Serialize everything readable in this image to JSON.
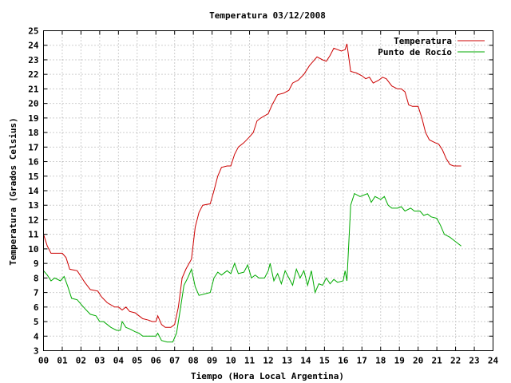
{
  "chart_data": {
    "type": "line",
    "title": "Temperatura 03/12/2008",
    "xlabel": "Tiempo (Hora Local Argentina)",
    "ylabel": "Temperatura (Grados Celsius)",
    "xlim": [
      0,
      24
    ],
    "ylim": [
      3,
      25
    ],
    "grid": true,
    "legend_position": "top-right",
    "x_ticks": [
      "00",
      "01",
      "02",
      "03",
      "04",
      "05",
      "06",
      "07",
      "08",
      "09",
      "10",
      "11",
      "12",
      "13",
      "14",
      "15",
      "16",
      "17",
      "18",
      "19",
      "20",
      "21",
      "22",
      "23",
      "24"
    ],
    "y_ticks": [
      "3",
      "4",
      "5",
      "6",
      "7",
      "8",
      "9",
      "10",
      "11",
      "12",
      "13",
      "14",
      "15",
      "16",
      "17",
      "18",
      "19",
      "20",
      "21",
      "22",
      "23",
      "24",
      "25"
    ],
    "series": [
      {
        "name": "Temperatura",
        "color": "#cc0000",
        "points": [
          [
            0,
            11
          ],
          [
            0.2,
            10.2
          ],
          [
            0.4,
            9.7
          ],
          [
            0.7,
            9.7
          ],
          [
            1.0,
            9.7
          ],
          [
            1.2,
            9.4
          ],
          [
            1.4,
            8.6
          ],
          [
            1.8,
            8.5
          ],
          [
            2.0,
            8.1
          ],
          [
            2.2,
            7.7
          ],
          [
            2.5,
            7.2
          ],
          [
            2.9,
            7.1
          ],
          [
            3.1,
            6.7
          ],
          [
            3.4,
            6.3
          ],
          [
            3.8,
            6.0
          ],
          [
            4.0,
            6.0
          ],
          [
            4.2,
            5.8
          ],
          [
            4.4,
            6.0
          ],
          [
            4.6,
            5.7
          ],
          [
            4.9,
            5.6
          ],
          [
            5.1,
            5.4
          ],
          [
            5.3,
            5.2
          ],
          [
            5.6,
            5.1
          ],
          [
            5.8,
            5.0
          ],
          [
            6.0,
            5.0
          ],
          [
            6.1,
            5.4
          ],
          [
            6.3,
            4.8
          ],
          [
            6.5,
            4.6
          ],
          [
            6.8,
            4.6
          ],
          [
            7.0,
            4.8
          ],
          [
            7.2,
            6.0
          ],
          [
            7.4,
            8.0
          ],
          [
            7.6,
            8.6
          ],
          [
            7.9,
            9.3
          ],
          [
            8.1,
            11.5
          ],
          [
            8.3,
            12.5
          ],
          [
            8.5,
            13.0
          ],
          [
            8.9,
            13.1
          ],
          [
            9.1,
            14.0
          ],
          [
            9.3,
            15.0
          ],
          [
            9.5,
            15.6
          ],
          [
            9.8,
            15.7
          ],
          [
            10.0,
            15.7
          ],
          [
            10.2,
            16.5
          ],
          [
            10.4,
            17.0
          ],
          [
            10.7,
            17.3
          ],
          [
            11.0,
            17.7
          ],
          [
            11.2,
            18.0
          ],
          [
            11.4,
            18.8
          ],
          [
            11.6,
            19.0
          ],
          [
            12.0,
            19.3
          ],
          [
            12.2,
            19.9
          ],
          [
            12.5,
            20.6
          ],
          [
            12.8,
            20.7
          ],
          [
            13.1,
            20.9
          ],
          [
            13.3,
            21.4
          ],
          [
            13.6,
            21.6
          ],
          [
            13.9,
            22.0
          ],
          [
            14.2,
            22.6
          ],
          [
            14.4,
            22.9
          ],
          [
            14.6,
            23.2
          ],
          [
            14.9,
            23.0
          ],
          [
            15.1,
            22.9
          ],
          [
            15.3,
            23.3
          ],
          [
            15.5,
            23.8
          ],
          [
            15.7,
            23.7
          ],
          [
            15.9,
            23.6
          ],
          [
            16.1,
            23.7
          ],
          [
            16.2,
            24.1
          ],
          [
            16.4,
            22.2
          ],
          [
            16.7,
            22.1
          ],
          [
            17.0,
            21.9
          ],
          [
            17.2,
            21.7
          ],
          [
            17.4,
            21.8
          ],
          [
            17.6,
            21.4
          ],
          [
            17.9,
            21.6
          ],
          [
            18.1,
            21.8
          ],
          [
            18.3,
            21.7
          ],
          [
            18.6,
            21.2
          ],
          [
            18.9,
            21.0
          ],
          [
            19.1,
            21.0
          ],
          [
            19.3,
            20.8
          ],
          [
            19.5,
            19.9
          ],
          [
            19.7,
            19.8
          ],
          [
            20.0,
            19.8
          ],
          [
            20.2,
            19.0
          ],
          [
            20.4,
            18.0
          ],
          [
            20.6,
            17.5
          ],
          [
            20.9,
            17.3
          ],
          [
            21.1,
            17.2
          ],
          [
            21.3,
            16.8
          ],
          [
            21.5,
            16.2
          ],
          [
            21.7,
            15.8
          ],
          [
            21.9,
            15.7
          ],
          [
            22.1,
            15.7
          ],
          [
            22.3,
            15.7
          ]
        ]
      },
      {
        "name": "Punto de Rocío",
        "color": "#00aa00",
        "points": [
          [
            0,
            8.5
          ],
          [
            0.2,
            8.2
          ],
          [
            0.4,
            7.8
          ],
          [
            0.6,
            8.0
          ],
          [
            0.9,
            7.8
          ],
          [
            1.1,
            8.1
          ],
          [
            1.3,
            7.4
          ],
          [
            1.5,
            6.6
          ],
          [
            1.8,
            6.5
          ],
          [
            2.0,
            6.2
          ],
          [
            2.2,
            5.9
          ],
          [
            2.5,
            5.5
          ],
          [
            2.8,
            5.4
          ],
          [
            3.0,
            5.0
          ],
          [
            3.2,
            5.0
          ],
          [
            3.4,
            4.8
          ],
          [
            3.6,
            4.6
          ],
          [
            3.9,
            4.4
          ],
          [
            4.1,
            4.4
          ],
          [
            4.2,
            5.0
          ],
          [
            4.4,
            4.6
          ],
          [
            4.6,
            4.5
          ],
          [
            4.9,
            4.3
          ],
          [
            5.1,
            4.2
          ],
          [
            5.3,
            4.0
          ],
          [
            5.5,
            4.0
          ],
          [
            5.8,
            4.0
          ],
          [
            6.0,
            4.0
          ],
          [
            6.1,
            4.2
          ],
          [
            6.3,
            3.7
          ],
          [
            6.6,
            3.6
          ],
          [
            6.9,
            3.6
          ],
          [
            7.1,
            4.2
          ],
          [
            7.3,
            5.8
          ],
          [
            7.5,
            7.5
          ],
          [
            7.7,
            8.0
          ],
          [
            7.9,
            8.6
          ],
          [
            8.1,
            7.4
          ],
          [
            8.3,
            6.8
          ],
          [
            8.6,
            6.9
          ],
          [
            8.9,
            7.0
          ],
          [
            9.1,
            8.0
          ],
          [
            9.3,
            8.4
          ],
          [
            9.5,
            8.2
          ],
          [
            9.8,
            8.5
          ],
          [
            10.0,
            8.3
          ],
          [
            10.2,
            9.0
          ],
          [
            10.4,
            8.3
          ],
          [
            10.7,
            8.4
          ],
          [
            10.9,
            8.9
          ],
          [
            11.1,
            8.0
          ],
          [
            11.3,
            8.2
          ],
          [
            11.5,
            8.0
          ],
          [
            11.8,
            8.0
          ],
          [
            12.0,
            8.5
          ],
          [
            12.1,
            9.0
          ],
          [
            12.3,
            7.8
          ],
          [
            12.5,
            8.3
          ],
          [
            12.7,
            7.6
          ],
          [
            12.9,
            8.5
          ],
          [
            13.1,
            8.0
          ],
          [
            13.3,
            7.5
          ],
          [
            13.5,
            8.6
          ],
          [
            13.7,
            8.0
          ],
          [
            13.9,
            8.5
          ],
          [
            14.1,
            7.5
          ],
          [
            14.3,
            8.5
          ],
          [
            14.5,
            7.0
          ],
          [
            14.7,
            7.6
          ],
          [
            14.9,
            7.5
          ],
          [
            15.1,
            8.0
          ],
          [
            15.3,
            7.6
          ],
          [
            15.5,
            7.9
          ],
          [
            15.7,
            7.7
          ],
          [
            16.0,
            7.8
          ],
          [
            16.1,
            8.5
          ],
          [
            16.2,
            7.8
          ],
          [
            16.4,
            13.0
          ],
          [
            16.6,
            13.8
          ],
          [
            16.9,
            13.6
          ],
          [
            17.1,
            13.7
          ],
          [
            17.3,
            13.8
          ],
          [
            17.5,
            13.2
          ],
          [
            17.7,
            13.6
          ],
          [
            18.0,
            13.4
          ],
          [
            18.2,
            13.6
          ],
          [
            18.4,
            13.0
          ],
          [
            18.6,
            12.8
          ],
          [
            18.9,
            12.8
          ],
          [
            19.1,
            12.9
          ],
          [
            19.3,
            12.6
          ],
          [
            19.6,
            12.8
          ],
          [
            19.8,
            12.6
          ],
          [
            20.1,
            12.6
          ],
          [
            20.3,
            12.3
          ],
          [
            20.5,
            12.4
          ],
          [
            20.7,
            12.2
          ],
          [
            21.0,
            12.1
          ],
          [
            21.2,
            11.6
          ],
          [
            21.4,
            11.0
          ],
          [
            21.7,
            10.8
          ],
          [
            21.9,
            10.6
          ],
          [
            22.1,
            10.4
          ],
          [
            22.3,
            10.2
          ]
        ]
      }
    ]
  }
}
